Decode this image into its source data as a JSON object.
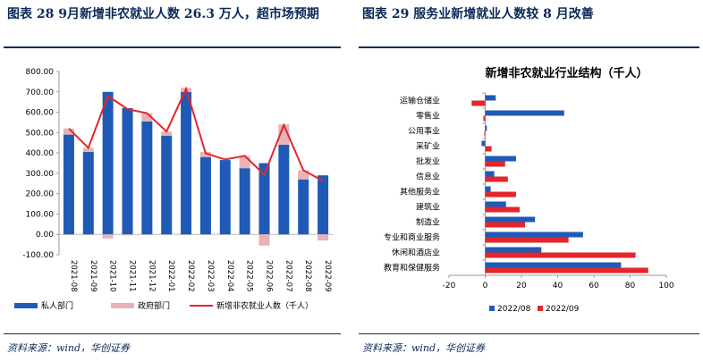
{
  "left": {
    "title": "图表 28   9月新增非农就业人数 26.3 万人，超市场预期",
    "source": "资料来源：wind，华创证券"
  },
  "right": {
    "title": "图表 29   服务业新增就业人数较 8 月改善",
    "source": "资料来源：wind，华创证券"
  },
  "colors": {
    "navy": "#0b2a59",
    "private_bar": "#1f5bb6",
    "gov_bar": "#e7b3b6",
    "total_line": "#e3262c",
    "bar_2208": "#1f5bb6",
    "bar_2209": "#e3262c"
  },
  "chart_data": [
    {
      "type": "bar",
      "title": "",
      "categories": [
        "2021-08",
        "2021-09",
        "2021-10",
        "2021-11",
        "2021-12",
        "2022-01",
        "2022-02",
        "2022-03",
        "2022-04",
        "2022-05",
        "2022-06",
        "2022-07",
        "2022-08",
        "2022-09"
      ],
      "series": [
        {
          "name": "私人部门",
          "kind": "bar",
          "values": [
            490,
            405,
            700,
            620,
            555,
            485,
            700,
            380,
            365,
            325,
            350,
            440,
            270,
            290
          ]
        },
        {
          "name": "政府部门",
          "kind": "bar",
          "values": [
            30,
            20,
            -20,
            -5,
            40,
            20,
            20,
            25,
            0,
            60,
            -55,
            100,
            45,
            -30
          ]
        },
        {
          "name": "新增非农就业人数（千人）",
          "kind": "line",
          "values": [
            520,
            425,
            680,
            615,
            595,
            505,
            715,
            398,
            368,
            386,
            293,
            537,
            315,
            263
          ]
        }
      ],
      "ylim": [
        -100,
        800
      ],
      "yticks": [
        "-100.00",
        "0.00",
        "100.00",
        "200.00",
        "300.00",
        "400.00",
        "500.00",
        "600.00",
        "700.00",
        "800.00"
      ],
      "legend": [
        "私人部门",
        "政府部门",
        "新增非农就业人数（千人）"
      ]
    },
    {
      "type": "bar",
      "orientation": "horizontal",
      "title": "新增非农就业行业结构（千人）",
      "categories": [
        "运输仓储业",
        "零售业",
        "公用事业",
        "采矿业",
        "批发业",
        "信息业",
        "其他服务业",
        "建筑业",
        "制造业",
        "专业和商业服务",
        "休闲和酒店业",
        "教育和保健服务"
      ],
      "series": [
        {
          "name": "2022/08",
          "values": [
            5.8,
            43.6,
            0.9,
            -2.0,
            17.0,
            5.0,
            3.0,
            11.5,
            27.5,
            54.0,
            31.0,
            75.0
          ]
        },
        {
          "name": "2022/09",
          "values": [
            -7.5,
            -1.0,
            -0.5,
            3.5,
            11.0,
            12.5,
            17.0,
            19.0,
            22.0,
            46.0,
            83.0,
            90.0
          ]
        }
      ],
      "xlim": [
        -20,
        100
      ],
      "xticks": [
        "-20",
        "0",
        "20",
        "40",
        "60",
        "80",
        "100"
      ],
      "legend": [
        "2022/08",
        "2022/09"
      ]
    }
  ]
}
